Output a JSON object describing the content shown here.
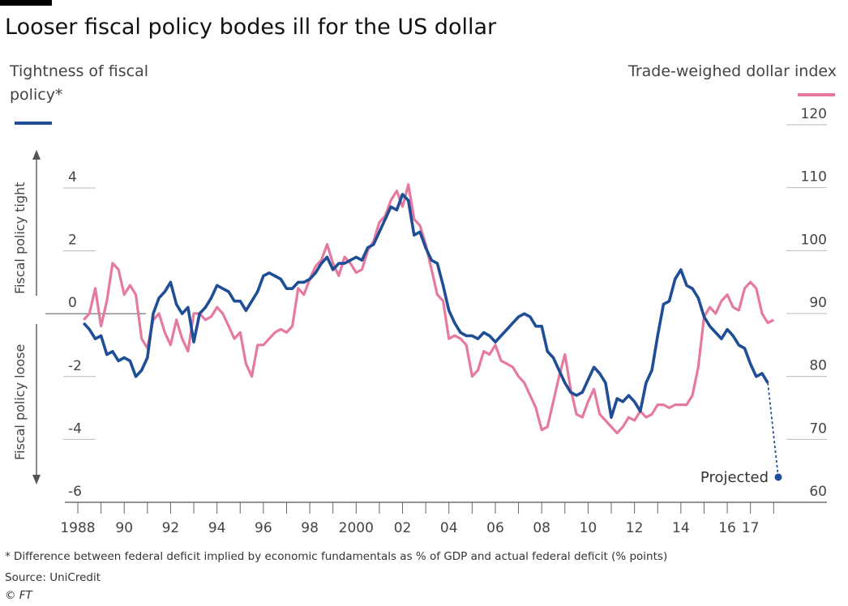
{
  "chart_data": {
    "type": "line",
    "title": "Looser fiscal policy bodes ill for the US dollar",
    "left_axis_title": "Tightness of fiscal policy*",
    "right_axis_title": "Trade-weighed dollar index",
    "direction_labels": {
      "top": "Fiscal policy tight",
      "bottom": "Fiscal policy loose"
    },
    "left_ylim": [
      -6,
      4
    ],
    "left_ticks": [
      "4",
      "2",
      "0",
      "-2",
      "-4",
      "-6"
    ],
    "right_ylim": [
      60,
      120
    ],
    "right_ticks": [
      "120",
      "110",
      "100",
      "90",
      "80",
      "70",
      "60"
    ],
    "xlim": [
      1988,
      2018.2
    ],
    "x_tick_labels": [
      {
        "x": 1988,
        "label": "1988"
      },
      {
        "x": 1990,
        "label": "90"
      },
      {
        "x": 1992,
        "label": "92"
      },
      {
        "x": 1994,
        "label": "94"
      },
      {
        "x": 1996,
        "label": "96"
      },
      {
        "x": 1998,
        "label": "98"
      },
      {
        "x": 2000,
        "label": "2000"
      },
      {
        "x": 2002,
        "label": "02"
      },
      {
        "x": 2004,
        "label": "04"
      },
      {
        "x": 2006,
        "label": "06"
      },
      {
        "x": 2008,
        "label": "08"
      },
      {
        "x": 2010,
        "label": "10"
      },
      {
        "x": 2012,
        "label": "12"
      },
      {
        "x": 2014,
        "label": "14"
      },
      {
        "x": 2016,
        "label": "16"
      },
      {
        "x": 2017,
        "label": "17"
      }
    ],
    "colors": {
      "fiscal": "#1f4e96",
      "dollar": "#e5799f"
    },
    "series": [
      {
        "axis": "left",
        "color": "#1f4e96",
        "points": [
          [
            1988.25,
            -0.3
          ],
          [
            1988.5,
            -0.5
          ],
          [
            1988.75,
            -0.8
          ],
          [
            1989.0,
            -0.7
          ],
          [
            1989.25,
            -1.3
          ],
          [
            1989.5,
            -1.2
          ],
          [
            1989.75,
            -1.5
          ],
          [
            1990.0,
            -1.4
          ],
          [
            1990.25,
            -1.5
          ],
          [
            1990.5,
            -2.0
          ],
          [
            1990.75,
            -1.8
          ],
          [
            1991.0,
            -1.4
          ],
          [
            1991.25,
            0.0
          ],
          [
            1991.5,
            0.5
          ],
          [
            1991.75,
            0.7
          ],
          [
            1992.0,
            1.0
          ],
          [
            1992.25,
            0.3
          ],
          [
            1992.5,
            0.0
          ],
          [
            1992.75,
            0.2
          ],
          [
            1993.0,
            -0.9
          ],
          [
            1993.25,
            0.0
          ],
          [
            1993.5,
            0.2
          ],
          [
            1993.75,
            0.5
          ],
          [
            1994.0,
            0.9
          ],
          [
            1994.25,
            0.8
          ],
          [
            1994.5,
            0.7
          ],
          [
            1994.75,
            0.4
          ],
          [
            1995.0,
            0.4
          ],
          [
            1995.25,
            0.1
          ],
          [
            1995.5,
            0.4
          ],
          [
            1995.75,
            0.7
          ],
          [
            1996.0,
            1.2
          ],
          [
            1996.25,
            1.3
          ],
          [
            1996.5,
            1.2
          ],
          [
            1996.75,
            1.1
          ],
          [
            1997.0,
            0.8
          ],
          [
            1997.25,
            0.8
          ],
          [
            1997.5,
            1.0
          ],
          [
            1997.75,
            1.0
          ],
          [
            1998.0,
            1.1
          ],
          [
            1998.25,
            1.3
          ],
          [
            1998.5,
            1.6
          ],
          [
            1998.75,
            1.8
          ],
          [
            1999.0,
            1.4
          ],
          [
            1999.25,
            1.6
          ],
          [
            1999.5,
            1.6
          ],
          [
            1999.75,
            1.7
          ],
          [
            2000.0,
            1.8
          ],
          [
            2000.25,
            1.7
          ],
          [
            2000.5,
            2.1
          ],
          [
            2000.75,
            2.2
          ],
          [
            2001.0,
            2.6
          ],
          [
            2001.25,
            3.0
          ],
          [
            2001.5,
            3.4
          ],
          [
            2001.75,
            3.3
          ],
          [
            2002.0,
            3.8
          ],
          [
            2002.25,
            3.6
          ],
          [
            2002.5,
            2.5
          ],
          [
            2002.75,
            2.6
          ],
          [
            2003.0,
            2.1
          ],
          [
            2003.25,
            1.7
          ],
          [
            2003.5,
            1.6
          ],
          [
            2003.75,
            0.9
          ],
          [
            2004.0,
            0.1
          ],
          [
            2004.25,
            -0.3
          ],
          [
            2004.5,
            -0.6
          ],
          [
            2004.75,
            -0.7
          ],
          [
            2005.0,
            -0.7
          ],
          [
            2005.25,
            -0.8
          ],
          [
            2005.5,
            -0.6
          ],
          [
            2005.75,
            -0.7
          ],
          [
            2006.0,
            -0.9
          ],
          [
            2006.25,
            -0.7
          ],
          [
            2006.5,
            -0.5
          ],
          [
            2006.75,
            -0.3
          ],
          [
            2007.0,
            -0.1
          ],
          [
            2007.25,
            0.0
          ],
          [
            2007.5,
            -0.1
          ],
          [
            2007.75,
            -0.4
          ],
          [
            2008.0,
            -0.4
          ],
          [
            2008.25,
            -1.2
          ],
          [
            2008.5,
            -1.4
          ],
          [
            2008.75,
            -1.8
          ],
          [
            2009.0,
            -2.2
          ],
          [
            2009.25,
            -2.5
          ],
          [
            2009.5,
            -2.6
          ],
          [
            2009.75,
            -2.5
          ],
          [
            2010.0,
            -2.1
          ],
          [
            2010.25,
            -1.7
          ],
          [
            2010.5,
            -1.9
          ],
          [
            2010.75,
            -2.2
          ],
          [
            2011.0,
            -3.3
          ],
          [
            2011.25,
            -2.7
          ],
          [
            2011.5,
            -2.8
          ],
          [
            2011.75,
            -2.6
          ],
          [
            2012.0,
            -2.8
          ],
          [
            2012.25,
            -3.1
          ],
          [
            2012.5,
            -2.2
          ],
          [
            2012.75,
            -1.8
          ],
          [
            2013.0,
            -0.7
          ],
          [
            2013.25,
            0.3
          ],
          [
            2013.5,
            0.4
          ],
          [
            2013.75,
            1.1
          ],
          [
            2014.0,
            1.4
          ],
          [
            2014.25,
            0.9
          ],
          [
            2014.5,
            0.8
          ],
          [
            2014.75,
            0.5
          ],
          [
            2015.0,
            -0.1
          ],
          [
            2015.25,
            -0.4
          ],
          [
            2015.5,
            -0.6
          ],
          [
            2015.75,
            -0.8
          ],
          [
            2016.0,
            -0.5
          ],
          [
            2016.25,
            -0.7
          ],
          [
            2016.5,
            -1.0
          ],
          [
            2016.75,
            -1.1
          ],
          [
            2017.0,
            -1.6
          ],
          [
            2017.25,
            -2.0
          ],
          [
            2017.5,
            -1.9
          ],
          [
            2017.75,
            -2.2
          ]
        ]
      },
      {
        "axis": "right",
        "color": "#e5799f",
        "points": [
          [
            1988.25,
            89.0
          ],
          [
            1988.5,
            90.0
          ],
          [
            1988.75,
            94.0
          ],
          [
            1989.0,
            88.0
          ],
          [
            1989.25,
            92.0
          ],
          [
            1989.5,
            98.0
          ],
          [
            1989.75,
            97.0
          ],
          [
            1990.0,
            93.0
          ],
          [
            1990.25,
            94.5
          ],
          [
            1990.5,
            93.0
          ],
          [
            1990.75,
            86.0
          ],
          [
            1991.0,
            84.5
          ],
          [
            1991.25,
            89.0
          ],
          [
            1991.5,
            90.0
          ],
          [
            1991.75,
            87.0
          ],
          [
            1992.0,
            85.0
          ],
          [
            1992.25,
            89.0
          ],
          [
            1992.5,
            86.0
          ],
          [
            1992.75,
            84.0
          ],
          [
            1993.0,
            90.0
          ],
          [
            1993.25,
            90.0
          ],
          [
            1993.5,
            89.0
          ],
          [
            1993.75,
            89.5
          ],
          [
            1994.0,
            91.0
          ],
          [
            1994.25,
            90.0
          ],
          [
            1994.5,
            88.0
          ],
          [
            1994.75,
            86.0
          ],
          [
            1995.0,
            87.0
          ],
          [
            1995.25,
            82.0
          ],
          [
            1995.5,
            80.0
          ],
          [
            1995.75,
            85.0
          ],
          [
            1996.0,
            85.0
          ],
          [
            1996.25,
            86.0
          ],
          [
            1996.5,
            87.0
          ],
          [
            1996.75,
            87.5
          ],
          [
            1997.0,
            87.0
          ],
          [
            1997.25,
            88.0
          ],
          [
            1997.5,
            94.0
          ],
          [
            1997.75,
            93.0
          ],
          [
            1998.0,
            95.5
          ],
          [
            1998.25,
            97.5
          ],
          [
            1998.5,
            98.5
          ],
          [
            1998.75,
            101.0
          ],
          [
            1999.0,
            98.0
          ],
          [
            1999.25,
            96.0
          ],
          [
            1999.5,
            99.0
          ],
          [
            1999.75,
            98.0
          ],
          [
            2000.0,
            96.5
          ],
          [
            2000.25,
            97.0
          ],
          [
            2000.5,
            100.0
          ],
          [
            2000.75,
            101.5
          ],
          [
            2001.0,
            104.5
          ],
          [
            2001.25,
            105.5
          ],
          [
            2001.5,
            108.0
          ],
          [
            2001.75,
            109.5
          ],
          [
            2002.0,
            107.0
          ],
          [
            2002.25,
            110.5
          ],
          [
            2002.5,
            105.0
          ],
          [
            2002.75,
            104.0
          ],
          [
            2003.0,
            101.0
          ],
          [
            2003.25,
            97.0
          ],
          [
            2003.5,
            93.0
          ],
          [
            2003.75,
            92.0
          ],
          [
            2004.0,
            86.0
          ],
          [
            2004.25,
            86.5
          ],
          [
            2004.5,
            86.0
          ],
          [
            2004.75,
            85.0
          ],
          [
            2005.0,
            80.0
          ],
          [
            2005.25,
            81.0
          ],
          [
            2005.5,
            84.0
          ],
          [
            2005.75,
            83.5
          ],
          [
            2006.0,
            85.0
          ],
          [
            2006.25,
            82.5
          ],
          [
            2006.5,
            82.0
          ],
          [
            2006.75,
            81.5
          ],
          [
            2007.0,
            80.0
          ],
          [
            2007.25,
            79.0
          ],
          [
            2007.5,
            77.0
          ],
          [
            2007.75,
            75.0
          ],
          [
            2008.0,
            71.5
          ],
          [
            2008.25,
            72.0
          ],
          [
            2008.5,
            76.0
          ],
          [
            2008.75,
            80.0
          ],
          [
            2009.0,
            83.5
          ],
          [
            2009.25,
            78.0
          ],
          [
            2009.5,
            74.0
          ],
          [
            2009.75,
            73.5
          ],
          [
            2010.0,
            76.0
          ],
          [
            2010.25,
            78.0
          ],
          [
            2010.5,
            74.0
          ],
          [
            2010.75,
            73.0
          ],
          [
            2011.0,
            72.0
          ],
          [
            2011.25,
            71.0
          ],
          [
            2011.5,
            72.0
          ],
          [
            2011.75,
            73.5
          ],
          [
            2012.0,
            73.0
          ],
          [
            2012.25,
            74.5
          ],
          [
            2012.5,
            73.5
          ],
          [
            2012.75,
            74.0
          ],
          [
            2013.0,
            75.5
          ],
          [
            2013.25,
            75.5
          ],
          [
            2013.5,
            75.0
          ],
          [
            2013.75,
            75.5
          ],
          [
            2014.0,
            75.5
          ],
          [
            2014.25,
            75.5
          ],
          [
            2014.5,
            77.0
          ],
          [
            2014.75,
            81.5
          ],
          [
            2015.0,
            89.5
          ],
          [
            2015.25,
            91.0
          ],
          [
            2015.5,
            90.0
          ],
          [
            2015.75,
            92.0
          ],
          [
            2016.0,
            93.0
          ],
          [
            2016.25,
            91.0
          ],
          [
            2016.5,
            90.5
          ],
          [
            2016.75,
            94.0
          ],
          [
            2017.0,
            95.0
          ],
          [
            2017.25,
            94.0
          ],
          [
            2017.5,
            90.0
          ],
          [
            2017.75,
            88.5
          ],
          [
            2018.0,
            89.0
          ]
        ]
      }
    ],
    "projection": {
      "from": [
        2017.75,
        -2.2
      ],
      "to": [
        2018.2,
        -5.2
      ],
      "label": "Projected"
    },
    "footnote": "* Difference between federal deficit implied by economic fundamentals as % of GDP and actual federal deficit (% points)",
    "source": "Source: UniCredit",
    "copyright": "© FT"
  }
}
